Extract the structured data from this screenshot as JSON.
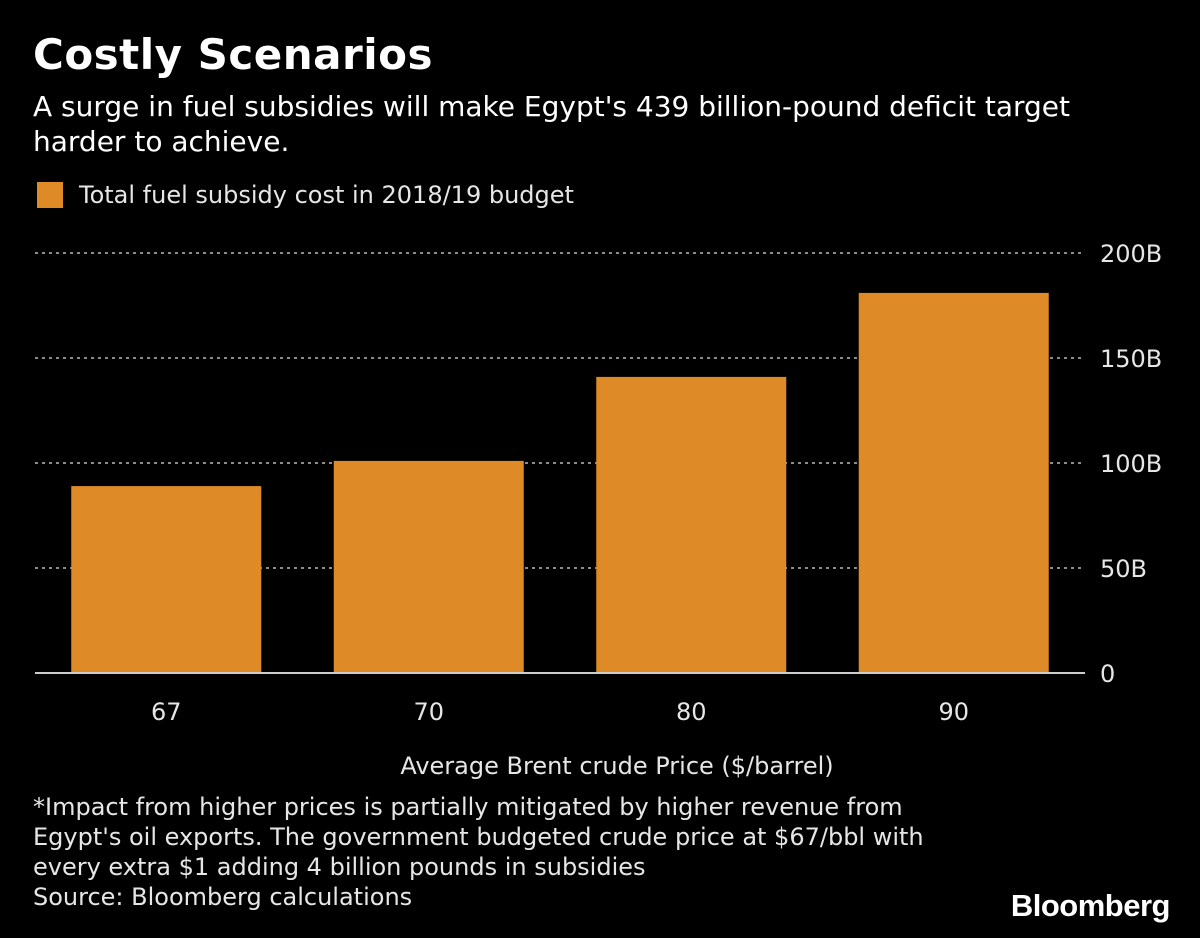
{
  "header": {
    "title": "Costly Scenarios",
    "subtitle": "A surge in fuel subsidies will make Egypt's 439 billion-pound deficit target harder to achieve."
  },
  "colors": {
    "bar": "#dd8a27",
    "background": "#000000",
    "grid": "#8c8c8c",
    "text": "#e6e6e6"
  },
  "chart_data": {
    "type": "bar",
    "categories": [
      "67",
      "70",
      "80",
      "90"
    ],
    "series": [
      {
        "name": "Total fuel subsidy cost in 2018/19 budget",
        "values": [
          89,
          101,
          141,
          181
        ]
      }
    ],
    "xlabel": "Average Brent crude Price ($/barrel)",
    "ylabel": "",
    "ylim": [
      0,
      200
    ],
    "yticks": [
      {
        "value": 0,
        "label": "0"
      },
      {
        "value": 50,
        "label": "50B"
      },
      {
        "value": 100,
        "label": "100B"
      },
      {
        "value": 150,
        "label": "150B"
      },
      {
        "value": 200,
        "label": "200B"
      }
    ],
    "grid": true,
    "y_axis_side": "right",
    "legend_position": "top-left"
  },
  "footnote": {
    "lines": [
      "*Impact from higher prices is partially mitigated by higher revenue from",
      "Egypt's oil exports. The government budgeted crude price at $67/bbl with",
      "every extra $1 adding 4 billion pounds in subsidies"
    ],
    "source": "Source: Bloomberg calculations"
  },
  "brand": {
    "logo_text": "Bloomberg"
  }
}
